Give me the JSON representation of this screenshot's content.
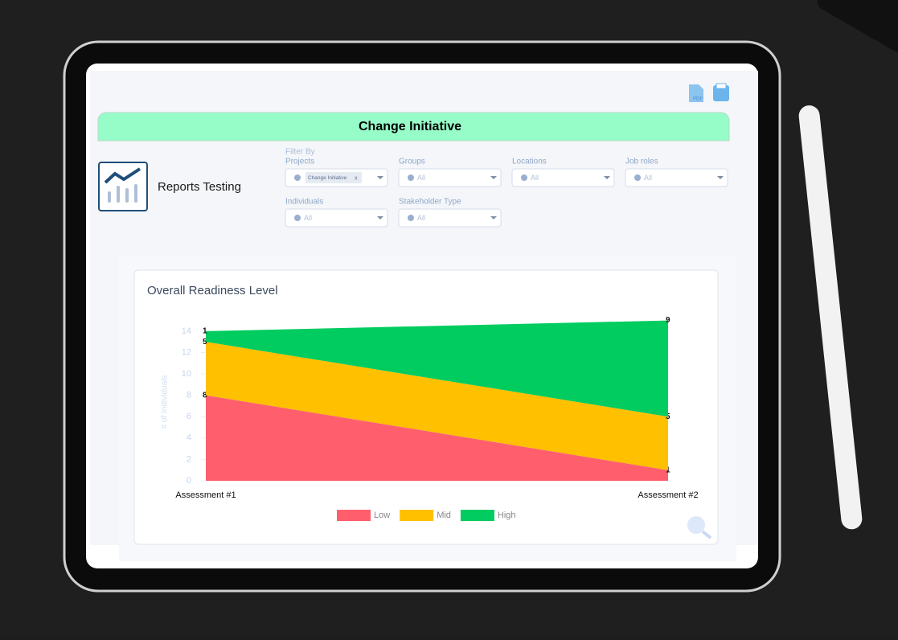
{
  "toolbar": {
    "pdf_label": "PDF"
  },
  "header": {
    "title": "Change Initiative",
    "report_name": "Reports Testing"
  },
  "filters": {
    "heading": "Filter By",
    "items": [
      {
        "label": "Projects",
        "value": "Change Initiative",
        "chip_remove": "x"
      },
      {
        "label": "Groups",
        "value": "All"
      },
      {
        "label": "Locations",
        "value": "All"
      },
      {
        "label": "Job roles",
        "value": "All"
      },
      {
        "label": "Individuals",
        "value": "All"
      },
      {
        "label": "Stakeholder Type",
        "value": "All"
      }
    ]
  },
  "chart_data": {
    "type": "stacked_area",
    "title": "Overall Readiness Level",
    "y_label": "# of Individuals",
    "categories": [
      "Assessment #1",
      "Assessment #2"
    ],
    "series": [
      {
        "name": "Low",
        "color": "#ff5f6d",
        "values": [
          8,
          1
        ]
      },
      {
        "name": "Mid",
        "color": "#ffc000",
        "values": [
          5,
          5
        ]
      },
      {
        "name": "High",
        "color": "#00cc5f",
        "values": [
          1,
          9
        ]
      }
    ],
    "ylim": [
      0,
      15
    ],
    "yticks": [
      0,
      2,
      4,
      6,
      8,
      10,
      12,
      14
    ],
    "legend": "bottom"
  }
}
